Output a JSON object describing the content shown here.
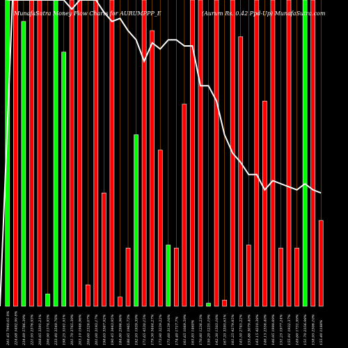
{
  "chart_data": {
    "type": "bar",
    "title": "MunafaSutra  Money Flow  Charts for AURUMPPP_E",
    "subtitle": "(Aurum Rs. 0.42 Ppd-Up)  MunafaSutra.com",
    "colors": {
      "up": "#00ff00",
      "down": "#ff0000",
      "price_line": "#ffffff",
      "divider": "#ff8c00",
      "background": "#000000"
    },
    "categories": [
      "241.43 7940.05 9%",
      "224.68 5492.90 8%",
      "234.89 5786.39%",
      "221.95 2376.93%",
      "208.95 3391.21%",
      "206.90 1374.93%",
      "233.40 3549.76%",
      "198.25 5161.91%",
      "201.70 3765.39%",
      "203.10 1946.96%",
      "208.60 2326.07%",
      "201.00 3193.17%",
      "198.65 3367.92%",
      "190.45 3443.95%",
      "184.80 2996.96%",
      "186.95 1965.73%",
      "192.95 1939.39%",
      "171.65 4530.15%",
      "179.30 3444.27%",
      "173.90 3239.22%",
      "171.60 3139.16%",
      "174.40 1717.7%",
      "161.65 1069.59%",
      "165.85 1460%",
      "170.80 1236.23%",
      "150.20 1235.19%",
      "142.30 1503.16%",
      "167.35 3395.61%",
      "161.25 4279.85%",
      "145.50 2745.22%",
      "155.86 3079.40%",
      "143.15 4210.38%",
      "146.15 2356.40%",
      "146.95 1999.89%",
      "151.25 1977.24%",
      "155.91 1932.37%",
      "149.60 1731.99%",
      "151.70 2356.98%",
      "158.95 2306.10%",
      "155.40 1188%"
    ],
    "series": [
      {
        "kind": "bar",
        "values": [
          100,
          100,
          93,
          100,
          100,
          4,
          100,
          83,
          100,
          100,
          7,
          100,
          37,
          100,
          3,
          19,
          56,
          100,
          90,
          51,
          20,
          19,
          66,
          100,
          100,
          1,
          100,
          2,
          100,
          88,
          20,
          100,
          67,
          100,
          19,
          100,
          19,
          100,
          100,
          28
        ],
        "direction": [
          "up",
          "down",
          "up",
          "down",
          "down",
          "up",
          "up",
          "up",
          "down",
          "down",
          "down",
          "down",
          "down",
          "down",
          "down",
          "down",
          "up",
          "down",
          "down",
          "down",
          "up",
          "down",
          "down",
          "down",
          "down",
          "up",
          "down",
          "down",
          "down",
          "down",
          "down",
          "down",
          "down",
          "down",
          "down",
          "down",
          "down",
          "up",
          "down",
          "down"
        ]
      },
      {
        "kind": "line",
        "values": [
          100,
          100,
          100,
          100,
          100,
          100,
          100,
          100,
          97,
          100,
          100,
          100,
          96,
          93,
          94,
          90,
          87,
          80,
          86,
          84,
          87,
          87,
          85,
          85,
          72,
          72,
          67,
          56,
          50,
          47,
          43,
          43,
          38,
          41,
          40,
          39,
          38,
          40,
          38,
          37
        ]
      }
    ],
    "ylim": [
      0,
      100
    ],
    "grid": false,
    "legend": "none"
  }
}
